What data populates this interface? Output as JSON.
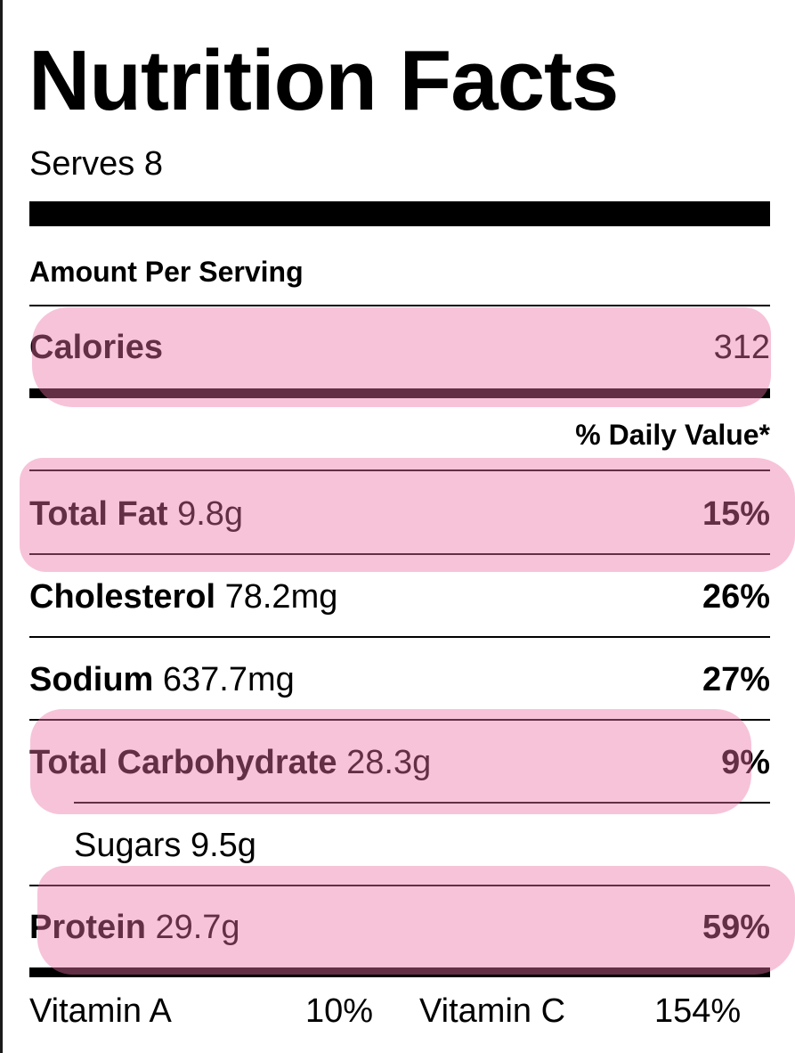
{
  "label": {
    "title": "Nutrition Facts",
    "serves": "Serves 8",
    "amount_per_serving": "Amount Per Serving",
    "calories": {
      "name": "Calories",
      "value": "312"
    },
    "daily_value_header": "% Daily Value*",
    "nutrients": [
      {
        "name": "Total Fat",
        "amount": "9.8g",
        "percent": "15%"
      },
      {
        "name": "Cholesterol",
        "amount": "78.2mg",
        "percent": "26%"
      },
      {
        "name": "Sodium",
        "amount": "637.7mg",
        "percent": "27%"
      },
      {
        "name": "Total Carbohydrate",
        "amount": "28.3g",
        "percent": "9%"
      },
      {
        "name": "Sugars",
        "amount": "9.5g",
        "percent": ""
      },
      {
        "name": "Protein",
        "amount": "29.7g",
        "percent": "59%"
      }
    ],
    "vitamins": [
      {
        "name": "Vitamin A",
        "percent": "10%"
      },
      {
        "name": "Vitamin C",
        "percent": "154%"
      }
    ]
  },
  "highlight_color": "#ec70a4"
}
